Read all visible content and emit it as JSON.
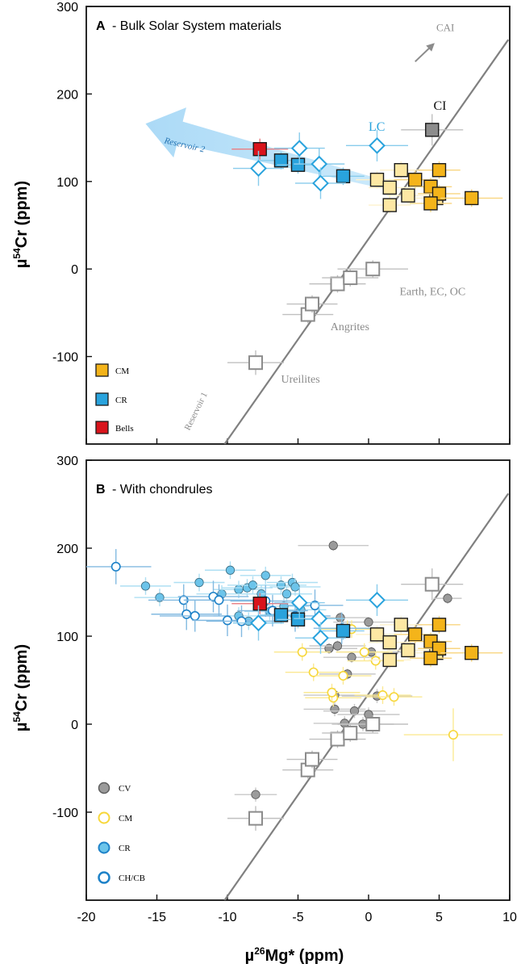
{
  "chart_data": [
    {
      "type": "scatter",
      "panel_letter": "A",
      "title": "- Bulk Solar System materials",
      "ylabel": "µ54Cr (ppm)",
      "xlim": [
        -20,
        10
      ],
      "ylim": [
        -200,
        300
      ],
      "yticks": [
        "300",
        "200",
        "100",
        "0",
        "-100"
      ],
      "legend": [
        {
          "label": "CM",
          "color": "#f4b41a"
        },
        {
          "label": "CR",
          "color": "#29a3dd"
        },
        {
          "label": "Bells",
          "color": "#d9141c"
        }
      ],
      "annotations": [
        {
          "text": "CAI",
          "x": 4.8,
          "y": 272
        },
        {
          "text": "CI",
          "x": 4.6,
          "y": 182
        },
        {
          "text": "LC",
          "x": 0.0,
          "y": 158
        },
        {
          "text": "Reservoir 2",
          "x": -14.5,
          "y": 144
        },
        {
          "text": "Earth, EC, OC",
          "x": 2.2,
          "y": -30
        },
        {
          "text": "Angrites",
          "x": -2.7,
          "y": -70
        },
        {
          "text": "Ureilites",
          "x": -6.2,
          "y": -130
        },
        {
          "text": "Reservoir 1",
          "x": -12.7,
          "y": -185
        }
      ],
      "reference_line": {
        "from": [
          -10.2,
          -200
        ],
        "to": [
          9.9,
          262
        ]
      },
      "reservoir2_arrow": {
        "from": [
          1.2,
          96
        ],
        "to": [
          -15.8,
          166
        ]
      },
      "series": [
        {
          "name": "Bulk (open squares)",
          "marker": "square-open",
          "color": "#8c8c8c",
          "points": [
            [
              -8,
              -107,
              2,
              14
            ],
            [
              -4.3,
              -52,
              1.8,
              10
            ],
            [
              -4.0,
              -40,
              1.8,
              10
            ],
            [
              -2.2,
              -17,
              2,
              10
            ],
            [
              -1.3,
              -10,
              2,
              10
            ],
            [
              0.3,
              0,
              2.5,
              10
            ]
          ]
        },
        {
          "name": "CI",
          "marker": "square",
          "color": "#8c8c8c",
          "points": [
            [
              4.5,
              159,
              2.2,
              18
            ]
          ]
        },
        {
          "name": "LC (light squares)",
          "marker": "square",
          "color": "#fde8a4",
          "points": [
            [
              0.6,
              102,
              1.5,
              10
            ],
            [
              1.5,
              93,
              1.5,
              10
            ],
            [
              2.3,
              113,
              1.5,
              10
            ],
            [
              2.8,
              84,
              1.5,
              10
            ],
            [
              1.5,
              73,
              1.5,
              10
            ],
            [
              4.8,
              81,
              1.5,
              10
            ]
          ]
        },
        {
          "name": "CM",
          "marker": "square",
          "color": "#f4b41a",
          "points": [
            [
              3.3,
              102,
              1.5,
              10
            ],
            [
              4.4,
              94,
              1.5,
              10
            ],
            [
              5.0,
              113,
              1.5,
              10
            ],
            [
              5.0,
              86,
              1.5,
              10
            ],
            [
              4.4,
              75,
              1.5,
              10
            ],
            [
              7.3,
              81,
              2.2,
              10
            ]
          ]
        },
        {
          "name": "CR",
          "marker": "square",
          "color": "#29a3dd",
          "points": [
            [
              -6.2,
              124,
              1.5,
              10
            ],
            [
              -5.0,
              119,
              1.5,
              10
            ],
            [
              -1.8,
              106,
              1.5,
              10
            ]
          ]
        },
        {
          "name": "Bells",
          "marker": "square",
          "color": "#d9141c",
          "points": [
            [
              -7.7,
              137,
              2,
              12
            ]
          ]
        },
        {
          "name": "Diamonds",
          "marker": "diamond-open",
          "color": "#29a3dd",
          "points": [
            [
              -7.8,
              115,
              1.8,
              20
            ],
            [
              -4.9,
              138,
              1.8,
              18
            ],
            [
              -3.5,
              120,
              1.8,
              18
            ],
            [
              -3.4,
              98,
              1.8,
              18
            ],
            [
              0.6,
              141,
              2.2,
              18
            ]
          ]
        }
      ]
    },
    {
      "type": "scatter",
      "panel_letter": "B",
      "title": "- With chondrules",
      "ylabel": "µ54Cr (ppm)",
      "xlabel": "µ26Mg* (ppm)",
      "xlim": [
        -20,
        10
      ],
      "ylim": [
        -200,
        300
      ],
      "xticks": [
        "-20",
        "-15",
        "-10",
        "-5",
        "0",
        "5",
        "10"
      ],
      "yticks": [
        "300",
        "200",
        "100",
        "0",
        "-100"
      ],
      "legend": [
        {
          "label": "CV",
          "color": "#9b9b9b"
        },
        {
          "label": "CM",
          "color": "#f7d73a"
        },
        {
          "label": "CR",
          "color": "#6cc4ea"
        },
        {
          "label": "CH/CB",
          "color": "#1e82c8"
        }
      ],
      "reference_line": {
        "from": [
          -10.2,
          -200
        ],
        "to": [
          9.9,
          262
        ]
      },
      "series": [
        {
          "name": "Bulk (open squares)",
          "marker": "square-open",
          "color": "#8c8c8c",
          "points": [
            [
              -8,
              -107,
              2,
              14
            ],
            [
              -4.3,
              -52,
              1.8,
              10
            ],
            [
              -4.0,
              -40,
              1.8,
              10
            ],
            [
              -2.2,
              -17,
              2,
              10
            ],
            [
              -1.3,
              -10,
              2,
              10
            ],
            [
              0.3,
              0,
              2.5,
              10
            ],
            [
              4.5,
              159,
              2.2,
              18
            ]
          ]
        },
        {
          "name": "LC (light squares)",
          "marker": "square",
          "color": "#fde8a4",
          "points": [
            [
              0.6,
              102,
              1.5,
              10
            ],
            [
              1.5,
              93,
              1.5,
              10
            ],
            [
              2.3,
              113,
              1.5,
              10
            ],
            [
              2.8,
              84,
              1.5,
              10
            ],
            [
              1.5,
              73,
              1.5,
              10
            ],
            [
              4.8,
              81,
              1.5,
              10
            ]
          ]
        },
        {
          "name": "CM bulk",
          "marker": "square",
          "color": "#f4b41a",
          "points": [
            [
              3.3,
              102,
              1.5,
              10
            ],
            [
              4.4,
              94,
              1.5,
              10
            ],
            [
              5.0,
              113,
              1.5,
              10
            ],
            [
              5.0,
              86,
              1.5,
              10
            ],
            [
              4.4,
              75,
              1.5,
              10
            ],
            [
              7.3,
              81,
              2.2,
              10
            ]
          ]
        },
        {
          "name": "CR bulk",
          "marker": "square",
          "color": "#29a3dd",
          "points": [
            [
              -6.2,
              124,
              1.5,
              10
            ],
            [
              -5.0,
              119,
              1.5,
              10
            ],
            [
              -1.8,
              106,
              1.5,
              10
            ]
          ]
        },
        {
          "name": "Bells",
          "marker": "square",
          "color": "#d9141c",
          "points": [
            [
              -7.7,
              137,
              2,
              12
            ]
          ]
        },
        {
          "name": "Diamonds",
          "marker": "diamond-open",
          "color": "#29a3dd",
          "points": [
            [
              -7.8,
              115,
              1.8,
              20
            ],
            [
              -4.9,
              138,
              1.8,
              18
            ],
            [
              -3.5,
              120,
              1.8,
              18
            ],
            [
              -3.4,
              98,
              1.8,
              18
            ],
            [
              0.6,
              141,
              2.2,
              18
            ]
          ]
        },
        {
          "name": "CV chondrules",
          "marker": "circle",
          "color": "#9b9b9b",
          "points": [
            [
              -2.5,
              203,
              2.5,
              6
            ],
            [
              5.6,
              143,
              1,
              6
            ],
            [
              -2.8,
              86,
              2,
              6
            ],
            [
              -2.2,
              89,
              2,
              6
            ],
            [
              -2.0,
              121,
              2,
              6
            ],
            [
              -1.5,
              57,
              2,
              6
            ],
            [
              -1.2,
              76,
              2,
              6
            ],
            [
              0.0,
              116,
              2.5,
              6
            ],
            [
              0.2,
              82,
              2.5,
              6
            ],
            [
              -2.4,
              33,
              2.2,
              8
            ],
            [
              -2.4,
              17,
              2.2,
              8
            ],
            [
              -1.7,
              1,
              2.2,
              8
            ],
            [
              -1.0,
              15,
              2.2,
              8
            ],
            [
              0.6,
              32,
              2.5,
              8
            ],
            [
              -0.4,
              0,
              2.2,
              8
            ],
            [
              0.0,
              11,
              2.2,
              8
            ],
            [
              -8.0,
              -80,
              1.5,
              8
            ]
          ]
        },
        {
          "name": "CM chondrules",
          "marker": "circle-open",
          "color": "#f7d73a",
          "points": [
            [
              -4.7,
              82,
              2,
              10
            ],
            [
              -3.9,
              59,
              2,
              10
            ],
            [
              -2.5,
              30,
              2,
              10
            ],
            [
              -2.6,
              36,
              2,
              10
            ],
            [
              -1.5,
              108,
              2,
              10
            ],
            [
              -1.2,
              108,
              2,
              10
            ],
            [
              -1.8,
              55,
              2,
              10
            ],
            [
              -0.3,
              82,
              2,
              10
            ],
            [
              0.5,
              72,
              2,
              10
            ],
            [
              1.0,
              33,
              2,
              10
            ],
            [
              1.8,
              31,
              2,
              10
            ],
            [
              6.0,
              -12,
              3.5,
              30
            ]
          ]
        },
        {
          "name": "CR chondrules",
          "marker": "circle",
          "color": "#6cc4ea",
          "points": [
            [
              -15.8,
              157,
              1.8,
              10
            ],
            [
              -14.8,
              144,
              1.8,
              10
            ],
            [
              -12.0,
              161,
              1.8,
              10
            ],
            [
              -10.4,
              148,
              1.8,
              10
            ],
            [
              -9.8,
              175,
              1.8,
              10
            ],
            [
              -9.2,
              153,
              1.8,
              10
            ],
            [
              -8.6,
              155,
              1.8,
              10
            ],
            [
              -8.2,
              158,
              1.8,
              10
            ],
            [
              -7.6,
              148,
              1.8,
              10
            ],
            [
              -7.3,
              169,
              1.8,
              10
            ],
            [
              -6.2,
              158,
              1.8,
              10
            ],
            [
              -5.4,
              161,
              1.8,
              10
            ],
            [
              -5.2,
              156,
              1.8,
              10
            ],
            [
              -9.2,
              123,
              1.8,
              10
            ],
            [
              -8.5,
              117,
              1.8,
              10
            ],
            [
              -7.0,
              128,
              1.8,
              10
            ],
            [
              -6.0,
              134,
              1.8,
              10
            ],
            [
              -5.8,
              148,
              1.8,
              10
            ],
            [
              -4.8,
              130,
              1.8,
              10
            ]
          ]
        },
        {
          "name": "CH/CB chondrules",
          "marker": "circle-open",
          "color": "#1e82c8",
          "points": [
            [
              -17.9,
              179,
              2.5,
              20
            ],
            [
              -13.1,
              141,
              2.5,
              18
            ],
            [
              -12.9,
              125,
              2.5,
              18
            ],
            [
              -12.3,
              123,
              2.5,
              18
            ],
            [
              -11.0,
              145,
              2.5,
              18
            ],
            [
              -10.6,
              141,
              2.5,
              18
            ],
            [
              -10.0,
              118,
              2.5,
              18
            ],
            [
              -9.0,
              117,
              2.5,
              18
            ],
            [
              -7.3,
              140,
              2.5,
              18
            ],
            [
              -6.8,
              129,
              2.5,
              18
            ],
            [
              -5.2,
              123,
              2.5,
              18
            ],
            [
              -3.8,
              135,
              2,
              18
            ],
            [
              -1.9,
              109,
              2,
              18
            ]
          ]
        }
      ]
    }
  ]
}
